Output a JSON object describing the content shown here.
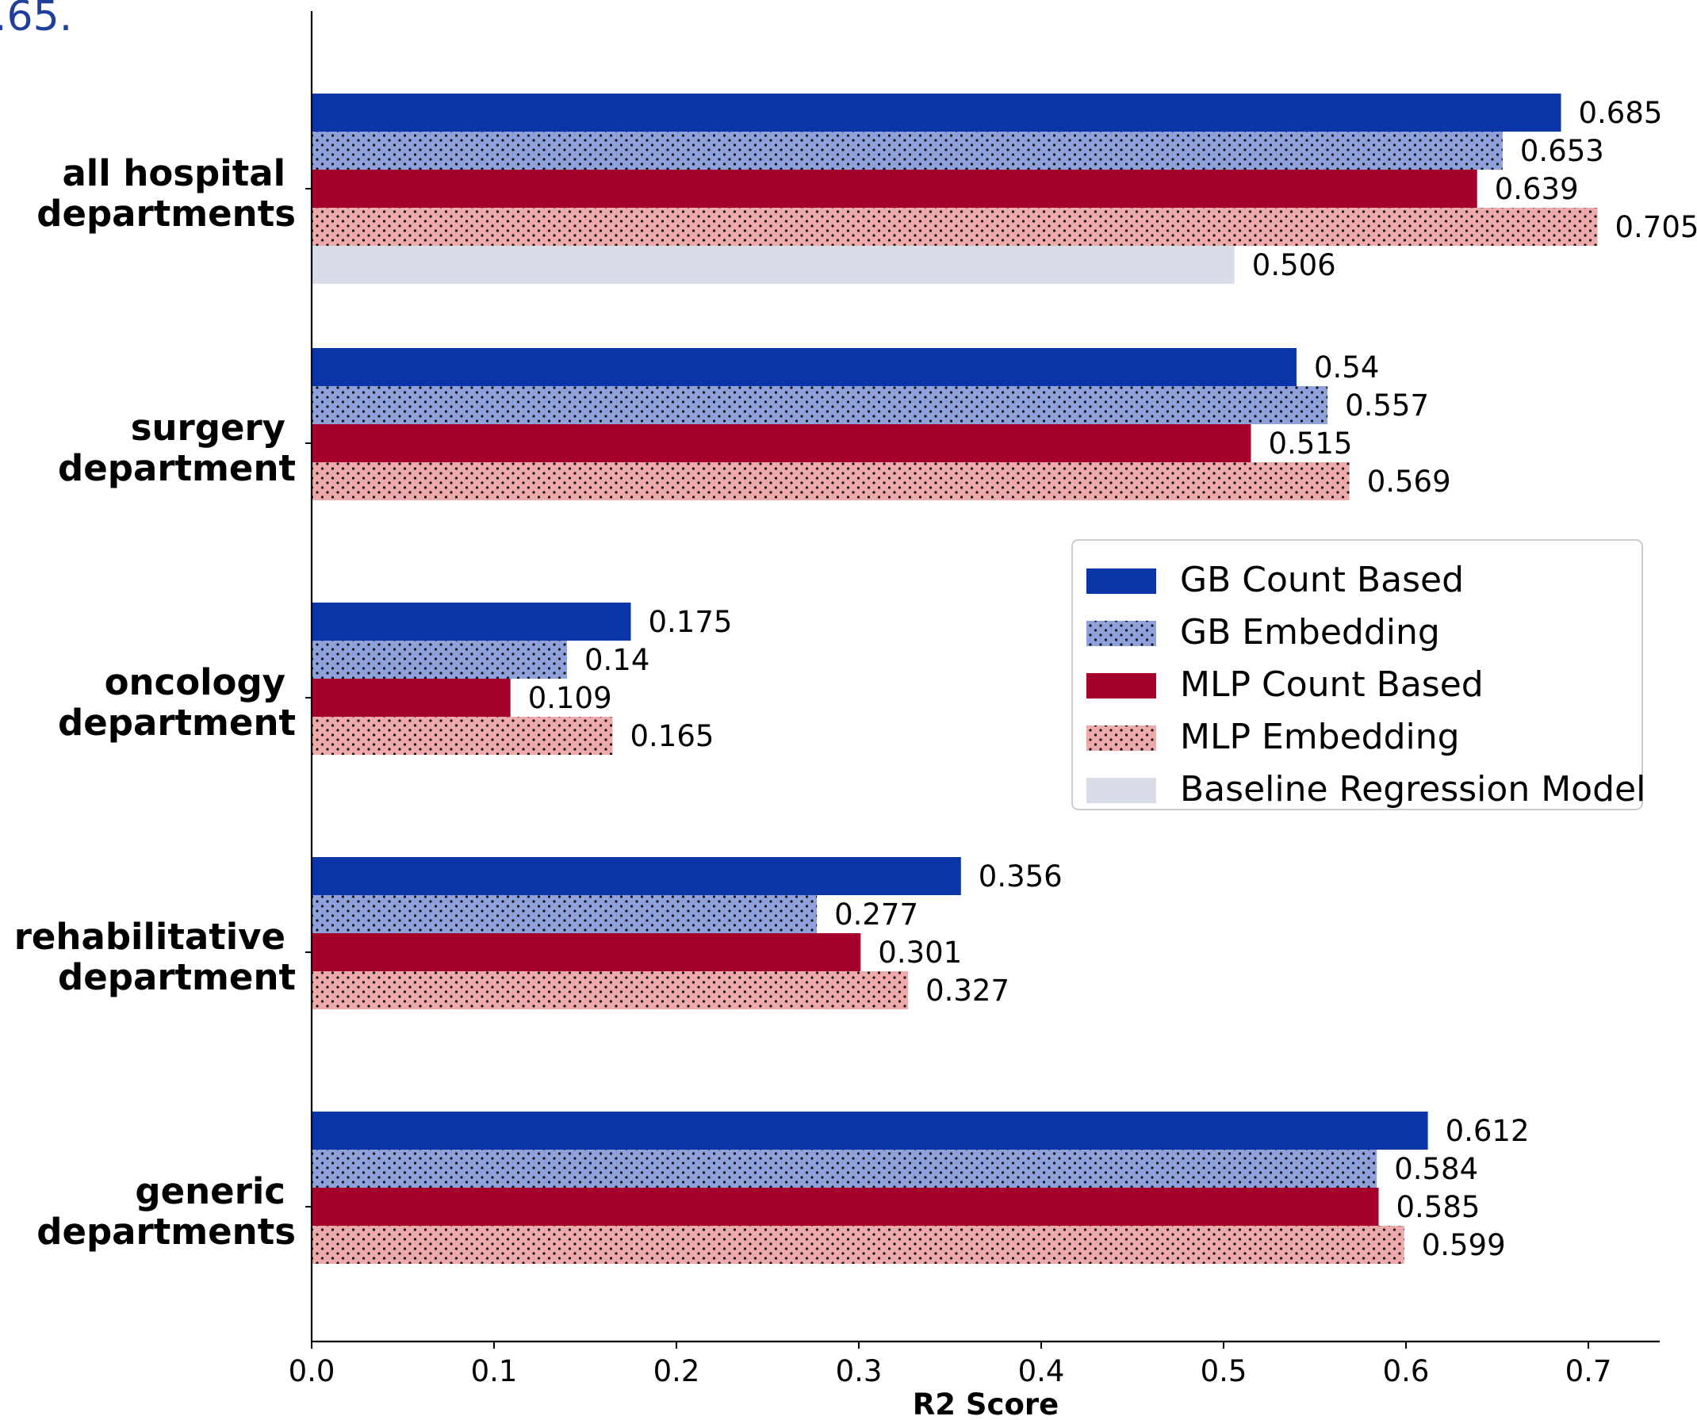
{
  "header_fragment": ".65.",
  "chart_data": {
    "type": "bar",
    "orientation": "horizontal",
    "title": "",
    "xlabel": "R2 Score",
    "ylabel": "",
    "xlim": [
      0.0,
      0.74
    ],
    "x_ticks": [
      "0.0",
      "0.1",
      "0.2",
      "0.3",
      "0.4",
      "0.5",
      "0.6",
      "0.7"
    ],
    "categories": [
      [
        "all hospital",
        "departments"
      ],
      [
        "surgery",
        "department"
      ],
      [
        "oncology",
        "department"
      ],
      [
        "rehabilitative",
        "department"
      ],
      [
        "generic",
        "departments"
      ]
    ],
    "series": [
      {
        "name": "GB Count Based",
        "color": "#0a35a8",
        "pattern": "solid",
        "values": [
          0.685,
          0.54,
          0.175,
          0.356,
          0.612
        ],
        "labels": [
          "0.685",
          "0.54",
          "0.175",
          "0.356",
          "0.612"
        ]
      },
      {
        "name": "GB Embedding",
        "color": "#8ea1db",
        "pattern": "dots",
        "values": [
          0.653,
          0.557,
          0.14,
          0.277,
          0.584
        ],
        "labels": [
          "0.653",
          "0.557",
          "0.14",
          "0.277",
          "0.584"
        ]
      },
      {
        "name": "MLP Count Based",
        "color": "#a5002c",
        "pattern": "solid",
        "values": [
          0.639,
          0.515,
          0.109,
          0.301,
          0.585
        ],
        "labels": [
          "0.639",
          "0.515",
          "0.109",
          "0.301",
          "0.585"
        ]
      },
      {
        "name": "MLP Embedding",
        "color": "#eeaaaa",
        "pattern": "dots",
        "values": [
          0.705,
          0.569,
          0.165,
          0.327,
          0.599
        ],
        "labels": [
          "0.705",
          "0.569",
          "0.165",
          "0.327",
          "0.599"
        ]
      },
      {
        "name": "Baseline Regression Model",
        "color": "#d8dde8",
        "pattern": "solid",
        "values": [
          0.506,
          null,
          null,
          null,
          null
        ],
        "labels": [
          "0.506",
          null,
          null,
          null,
          null
        ]
      }
    ],
    "legend_position": "center-right",
    "grid": false
  }
}
